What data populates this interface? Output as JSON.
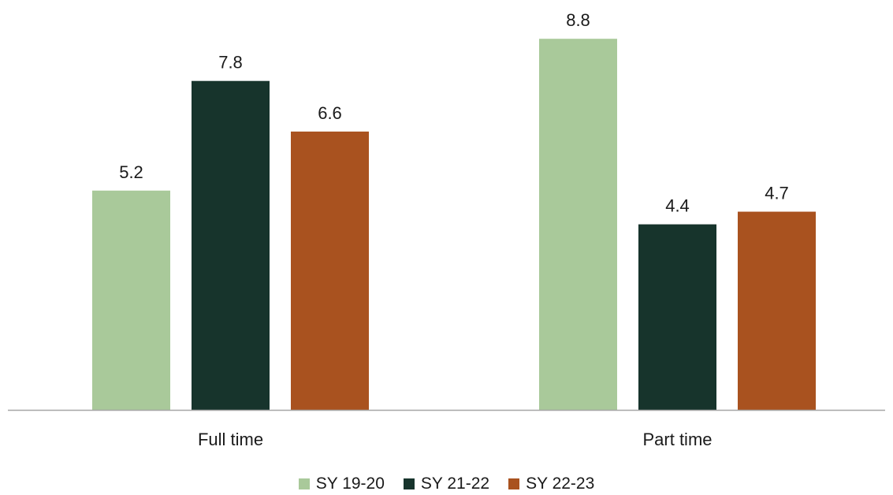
{
  "chart_data": {
    "type": "bar",
    "categories": [
      "Full time",
      "Part time"
    ],
    "series": [
      {
        "name": "SY 19-20",
        "values": [
          5.2,
          8.8
        ],
        "color": "#a9c99a"
      },
      {
        "name": "SY 21-22",
        "values": [
          7.8,
          4.4
        ],
        "color": "#17342c"
      },
      {
        "name": "SY 22-23",
        "values": [
          6.6,
          4.7
        ],
        "color": "#a9521f"
      }
    ],
    "title": "",
    "xlabel": "",
    "ylabel": "",
    "ylim": [
      0,
      10
    ],
    "grid": false,
    "legend_position": "bottom",
    "value_labels": true,
    "axis_color": "#a6a6a6"
  },
  "legend": {
    "items": [
      {
        "label": "SY 19-20",
        "color": "#a9c99a"
      },
      {
        "label": "SY 21-22",
        "color": "#17342c"
      },
      {
        "label": "SY 22-23",
        "color": "#a9521f"
      }
    ]
  }
}
